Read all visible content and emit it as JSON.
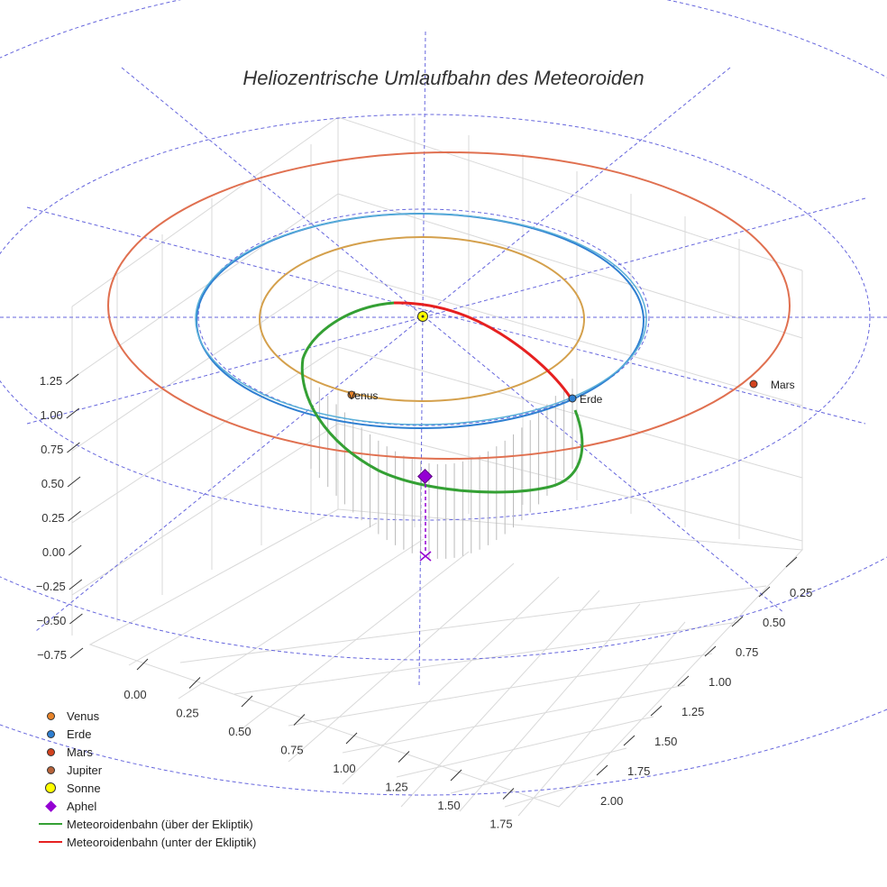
{
  "title": "Heliozentrische Umlaufbahn des Meteoroiden",
  "colors": {
    "venus": "#d4a04c",
    "venus_marker": "#e8842a",
    "earth": "#2f7fd1",
    "earth_orbit2": "#5ab0d8",
    "mars": "#e07050",
    "mars_marker": "#d2421e",
    "jupiter_marker": "#b8633a",
    "sun": "#ffff00",
    "aphel": "#9400d3",
    "green": "#34a034",
    "red": "#e62020",
    "grid_polar": "#6666dd"
  },
  "legend": [
    {
      "label": "Venus",
      "type": "dot",
      "color": "#e8842a"
    },
    {
      "label": "Erde",
      "type": "dot",
      "color": "#2f7fd1"
    },
    {
      "label": "Mars",
      "type": "dot",
      "color": "#d2421e"
    },
    {
      "label": "Jupiter",
      "type": "dot",
      "color": "#b8633a"
    },
    {
      "label": "Sonne",
      "type": "bigdot",
      "color": "#ffff00"
    },
    {
      "label": "Aphel",
      "type": "diamond",
      "color": "#9400d3"
    },
    {
      "label": "Meteoroidenbahn (über der Ekliptik)",
      "type": "line",
      "color": "#34a034"
    },
    {
      "label": "Meteoroidenbahn (unter der Ekliptik)",
      "type": "line",
      "color": "#e62020"
    }
  ],
  "planet_labels": {
    "venus": "Venus",
    "earth": "Erde",
    "mars": "Mars"
  },
  "chart_data": {
    "type": "line",
    "projection": "3d",
    "title": "Heliozentrische Umlaufbahn des Meteoroiden",
    "axes": {
      "x": {
        "ticks": [
          "0.00",
          "0.25",
          "0.50",
          "0.75",
          "1.00",
          "1.25",
          "1.50",
          "1.75"
        ],
        "range": [
          -0.25,
          1.9
        ]
      },
      "y": {
        "ticks": [
          "0.25",
          "0.50",
          "0.75",
          "1.00",
          "1.25",
          "1.50",
          "1.75",
          "2.00"
        ],
        "range": [
          0.1,
          2.2
        ]
      },
      "z": {
        "ticks": [
          "−0.75",
          "−0.50",
          "−0.25",
          "0.00",
          "0.25",
          "0.50",
          "0.75",
          "1.00",
          "1.25"
        ],
        "range": [
          -0.85,
          1.35
        ]
      }
    },
    "orbits": [
      {
        "name": "Venus",
        "radius_au": 0.72
      },
      {
        "name": "Erde",
        "radius_au": 1.0
      },
      {
        "name": "Mars",
        "radius_au": 1.52
      }
    ],
    "series": [
      {
        "name": "Meteoroidenbahn (über der Ekliptik)",
        "color": "green"
      },
      {
        "name": "Meteoroidenbahn (unter der Ekliptik)",
        "color": "red"
      }
    ],
    "markers": [
      "Venus",
      "Erde",
      "Mars",
      "Sonne",
      "Aphel"
    ],
    "legend_position": "bottom-left"
  }
}
